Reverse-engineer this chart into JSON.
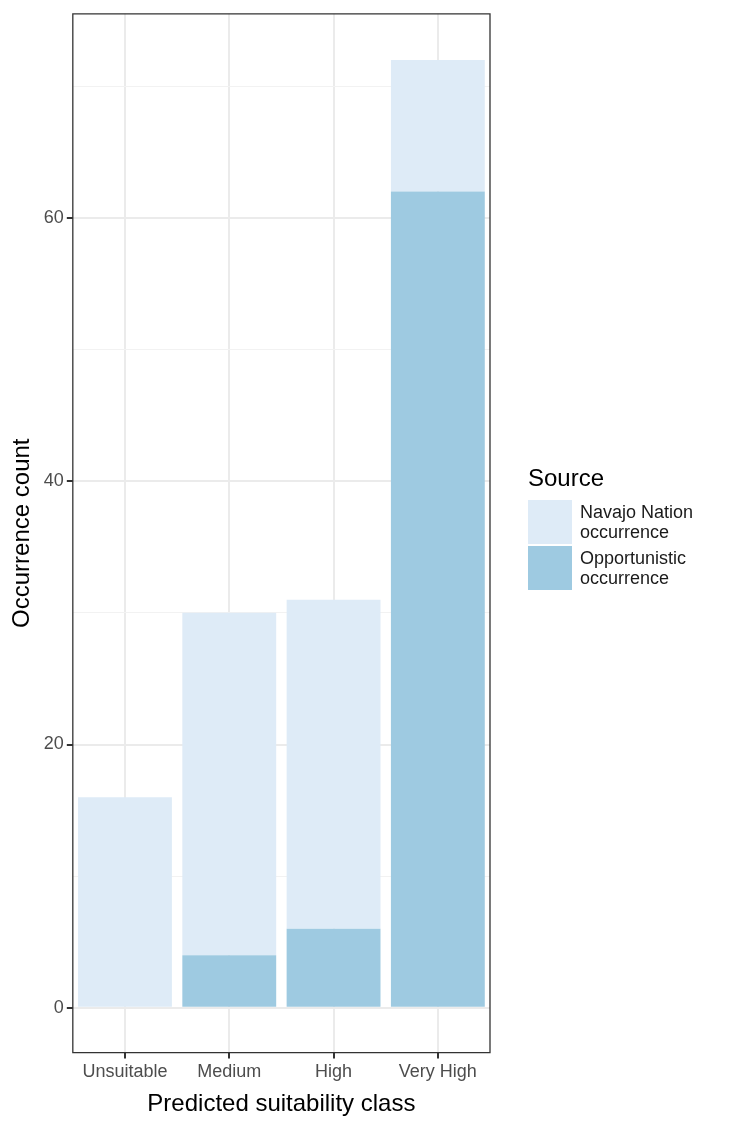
{
  "chart_data": {
    "type": "bar",
    "stacked": true,
    "xlabel": "Predicted suitability class",
    "ylabel": "Occurrence count",
    "legend_title": "Source",
    "legend": "right",
    "categories": [
      "Unsuitable",
      "Medium",
      "High",
      "Very High"
    ],
    "series": [
      {
        "name": "Opportunistic occurrence",
        "color": "#9ecae1",
        "values": [
          0,
          4,
          6,
          62
        ]
      },
      {
        "name": "Navajo Nation occurrence",
        "color": "#deebf7",
        "values": [
          16,
          26,
          25,
          10
        ]
      }
    ],
    "ylim": [
      -3.4,
      75.5
    ],
    "yticks": [
      0,
      {
        "value": 10,
        "label": null
      },
      20,
      {
        "value": 30,
        "label": null
      },
      40,
      {
        "value": 50,
        "label": null
      },
      60,
      {
        "value": 70,
        "label": null
      }
    ],
    "grid": true
  }
}
